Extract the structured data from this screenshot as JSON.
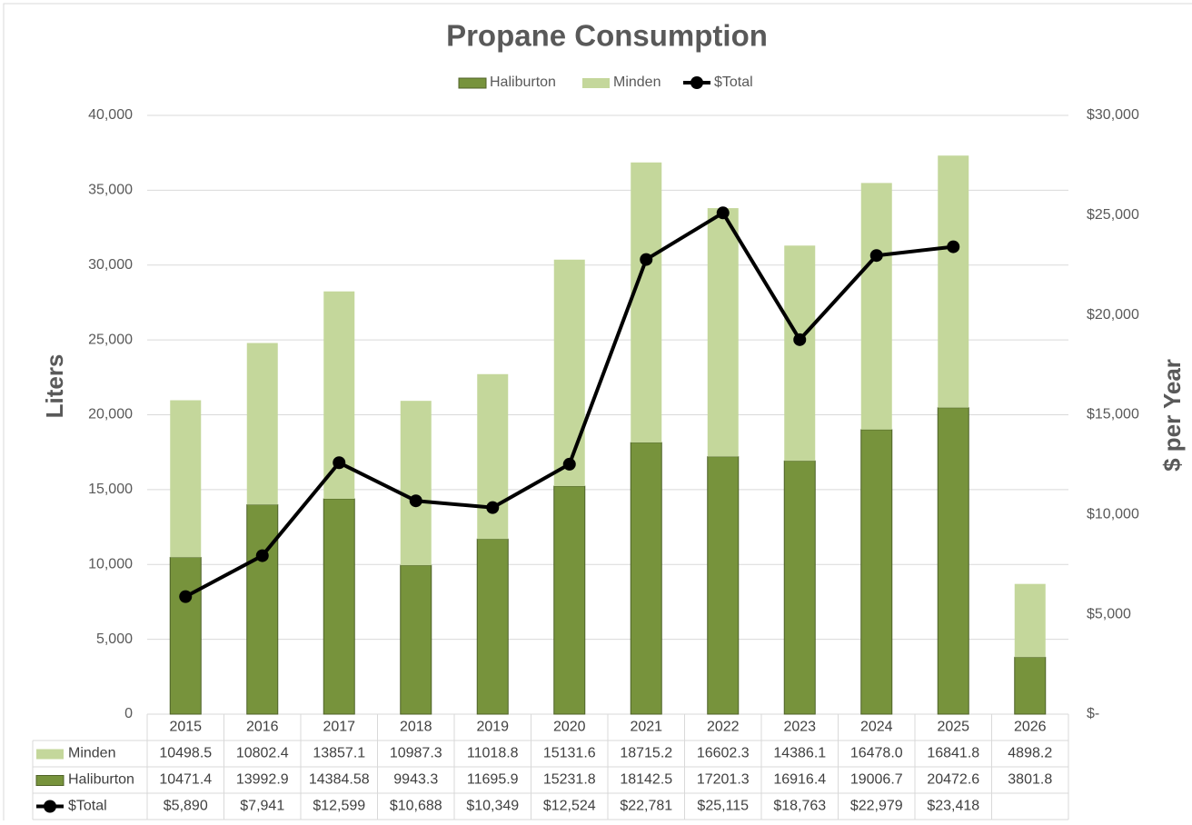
{
  "chart_data": {
    "type": "bar",
    "stacked": true,
    "title": "Propane Consumption",
    "categories": [
      "2015",
      "2016",
      "2017",
      "2018",
      "2019",
      "2020",
      "2021",
      "2022",
      "2023",
      "2024",
      "2025",
      "2026"
    ],
    "series": [
      {
        "name": "Haliburton",
        "color": "#77933c",
        "type": "bar",
        "values": [
          10471.4,
          13992.9,
          14384.58,
          9943.3,
          11695.9,
          15231.8,
          18142.5,
          17201.3,
          16916.4,
          19006.7,
          20472.6,
          3801.8
        ],
        "value_labels": [
          "10471.4",
          "13992.9",
          "14384.58",
          "9943.3",
          "11695.9",
          "15231.8",
          "18142.5",
          "17201.3",
          "16916.4",
          "19006.7",
          "20472.6",
          "3801.8"
        ]
      },
      {
        "name": "Minden",
        "color": "#c4d79b",
        "type": "bar",
        "values": [
          10498.5,
          10802.4,
          13857.1,
          10987.3,
          11018.8,
          15131.6,
          18715.2,
          16602.3,
          14386.1,
          16478.0,
          16841.8,
          4898.2
        ],
        "value_labels": [
          "10498.5",
          "10802.4",
          "13857.1",
          "10987.3",
          "11018.8",
          "15131.6",
          "18715.2",
          "16602.3",
          "14386.1",
          "16478.0",
          "16841.8",
          "4898.2"
        ]
      },
      {
        "name": "$Total",
        "color": "#000000",
        "type": "line",
        "axis": "y2",
        "values": [
          5890,
          7941,
          12599,
          10688,
          10349,
          12524,
          22781,
          25115,
          18763,
          22979,
          23418,
          null
        ],
        "value_labels": [
          "$5,890",
          "$7,941",
          "$12,599",
          "$10,688",
          "$10,349",
          "$12,524",
          "$22,781",
          "$25,115",
          "$18,763",
          "$22,979",
          "$23,418",
          null
        ]
      }
    ],
    "y_label": "Liters",
    "y2_label": "$ per Year",
    "ylim": [
      0,
      40000
    ],
    "yticks": [
      0,
      {
        "value": 5000,
        "label": "5,000"
      },
      {
        "value": 10000,
        "label": "10,000"
      },
      {
        "value": 15000,
        "label": "15,000"
      },
      {
        "value": 20000,
        "label": "20,000"
      },
      {
        "value": 25000,
        "label": "25,000"
      },
      {
        "value": 30000,
        "label": "30,000"
      },
      {
        "value": 35000,
        "label": "35,000"
      },
      {
        "value": 40000,
        "label": "40,000"
      }
    ],
    "y2lim": [
      0,
      30000
    ],
    "y2ticks": [
      {
        "value": 0,
        "label": "$-"
      },
      {
        "value": 5000,
        "label": "$5,000"
      },
      {
        "value": 10000,
        "label": "$10,000"
      },
      {
        "value": 15000,
        "label": "$15,000"
      },
      {
        "value": 20000,
        "label": "$20,000"
      },
      {
        "value": 25000,
        "label": "$25,000"
      },
      {
        "value": 30000,
        "label": "$30,000"
      }
    ],
    "grid": true,
    "legend": "top",
    "data_table": true
  }
}
